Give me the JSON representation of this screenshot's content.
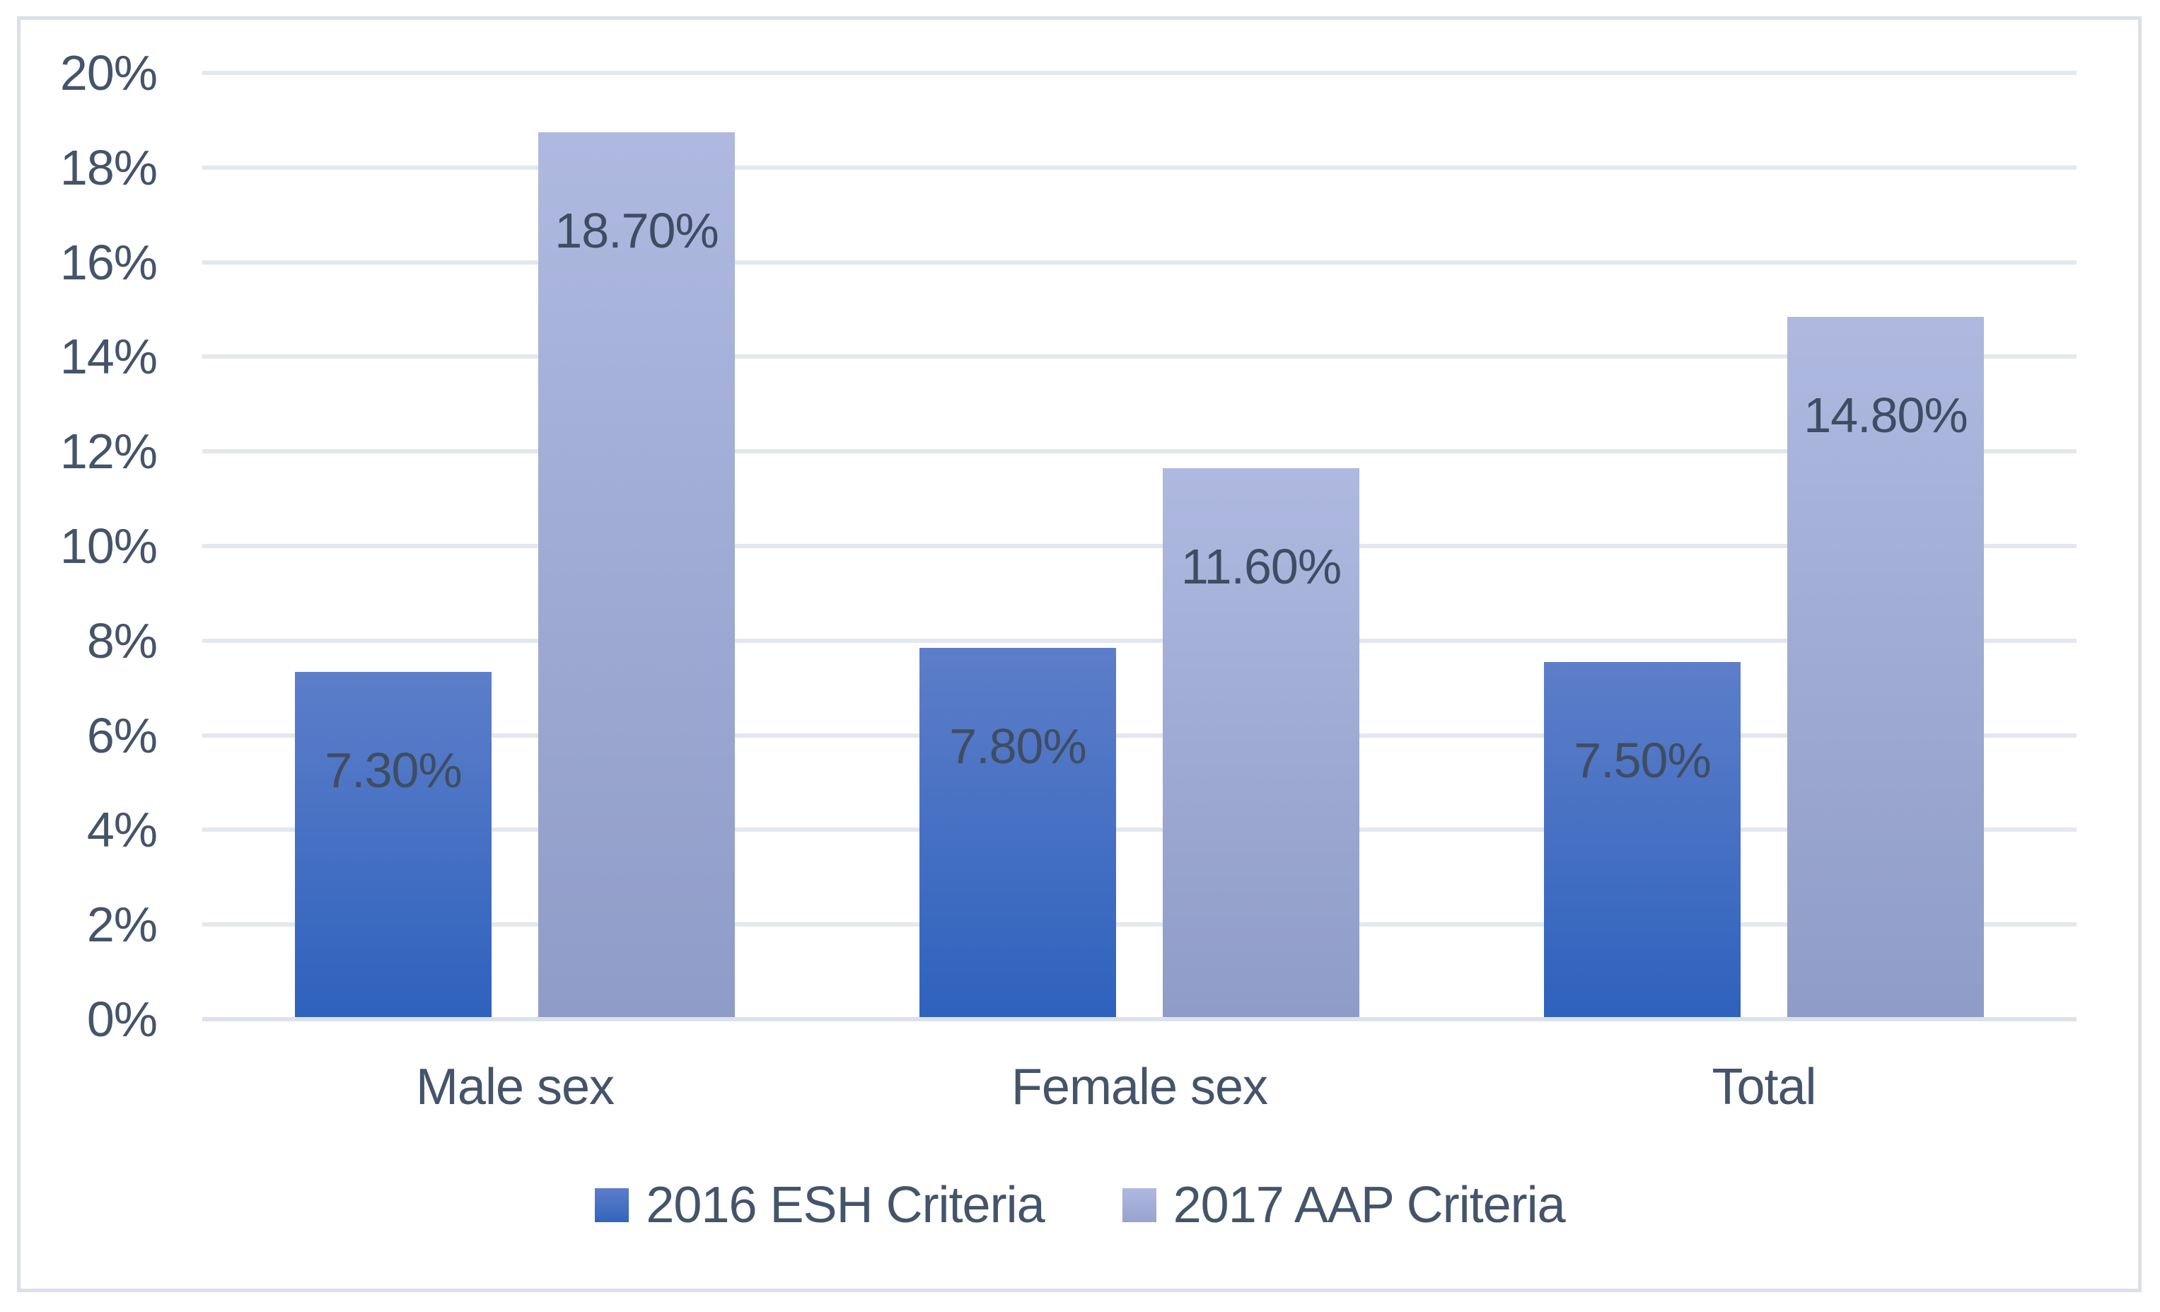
{
  "chart_data": {
    "type": "bar",
    "categories": [
      "Male sex",
      "Female sex",
      "Total"
    ],
    "series": [
      {
        "name": "2016 ESH Criteria",
        "values": [
          7.3,
          7.8,
          7.5
        ],
        "data_labels": [
          "7.30%",
          "7.80%",
          "7.50%"
        ],
        "color_top": "#5D7EC9",
        "color_bottom": "#2E62BD"
      },
      {
        "name": "2017 AAP Criteria",
        "values": [
          18.7,
          11.6,
          14.8
        ],
        "data_labels": [
          "18.70%",
          "11.60%",
          "14.80%"
        ],
        "color_top": "#AFB9E0",
        "color_bottom": "#8F9CC7"
      }
    ],
    "title": "",
    "xlabel": "",
    "ylabel": "",
    "ylim": [
      0,
      20
    ],
    "y_tick_step": 2,
    "y_tick_labels": [
      "0%",
      "2%",
      "4%",
      "6%",
      "8%",
      "10%",
      "12%",
      "14%",
      "16%",
      "18%",
      "20%"
    ],
    "grid": "horizontal",
    "legend_position": "bottom-center",
    "colors": {
      "text": "#44546A",
      "gridline": "#E3E7EE",
      "axis_line": "#DCE2EB",
      "frame_border": "#DAE0E9",
      "background": "#FFFFFF"
    }
  }
}
